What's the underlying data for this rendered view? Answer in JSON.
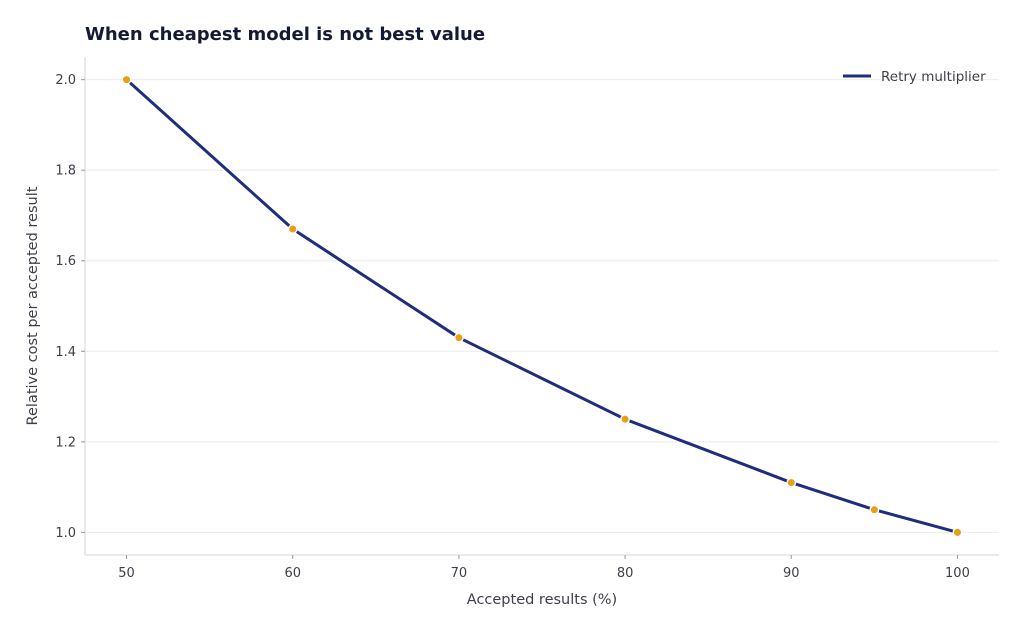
{
  "chart_data": {
    "type": "line",
    "title": "When cheapest model is not best value",
    "xlabel": "Accepted results (%)",
    "ylabel": "Relative cost per accepted result",
    "xlim": [
      47.5,
      102.5
    ],
    "ylim": [
      0.95,
      2.05
    ],
    "xticks": [
      50,
      60,
      70,
      80,
      90,
      100
    ],
    "yticks": [
      1.0,
      1.2,
      1.4,
      1.6,
      1.8,
      2.0
    ],
    "ytick_labels": [
      "1.0",
      "1.2",
      "1.4",
      "1.6",
      "1.8",
      "2.0"
    ],
    "grid": "horizontal",
    "legend_position": "top-right",
    "series": [
      {
        "name": "Retry multiplier",
        "color": "#1f2d7d",
        "marker_color": "#e89f12",
        "x": [
          50,
          60,
          70,
          80,
          90,
          95,
          100
        ],
        "y": [
          2.0,
          1.67,
          1.43,
          1.25,
          1.11,
          1.05,
          1.0
        ]
      }
    ]
  }
}
